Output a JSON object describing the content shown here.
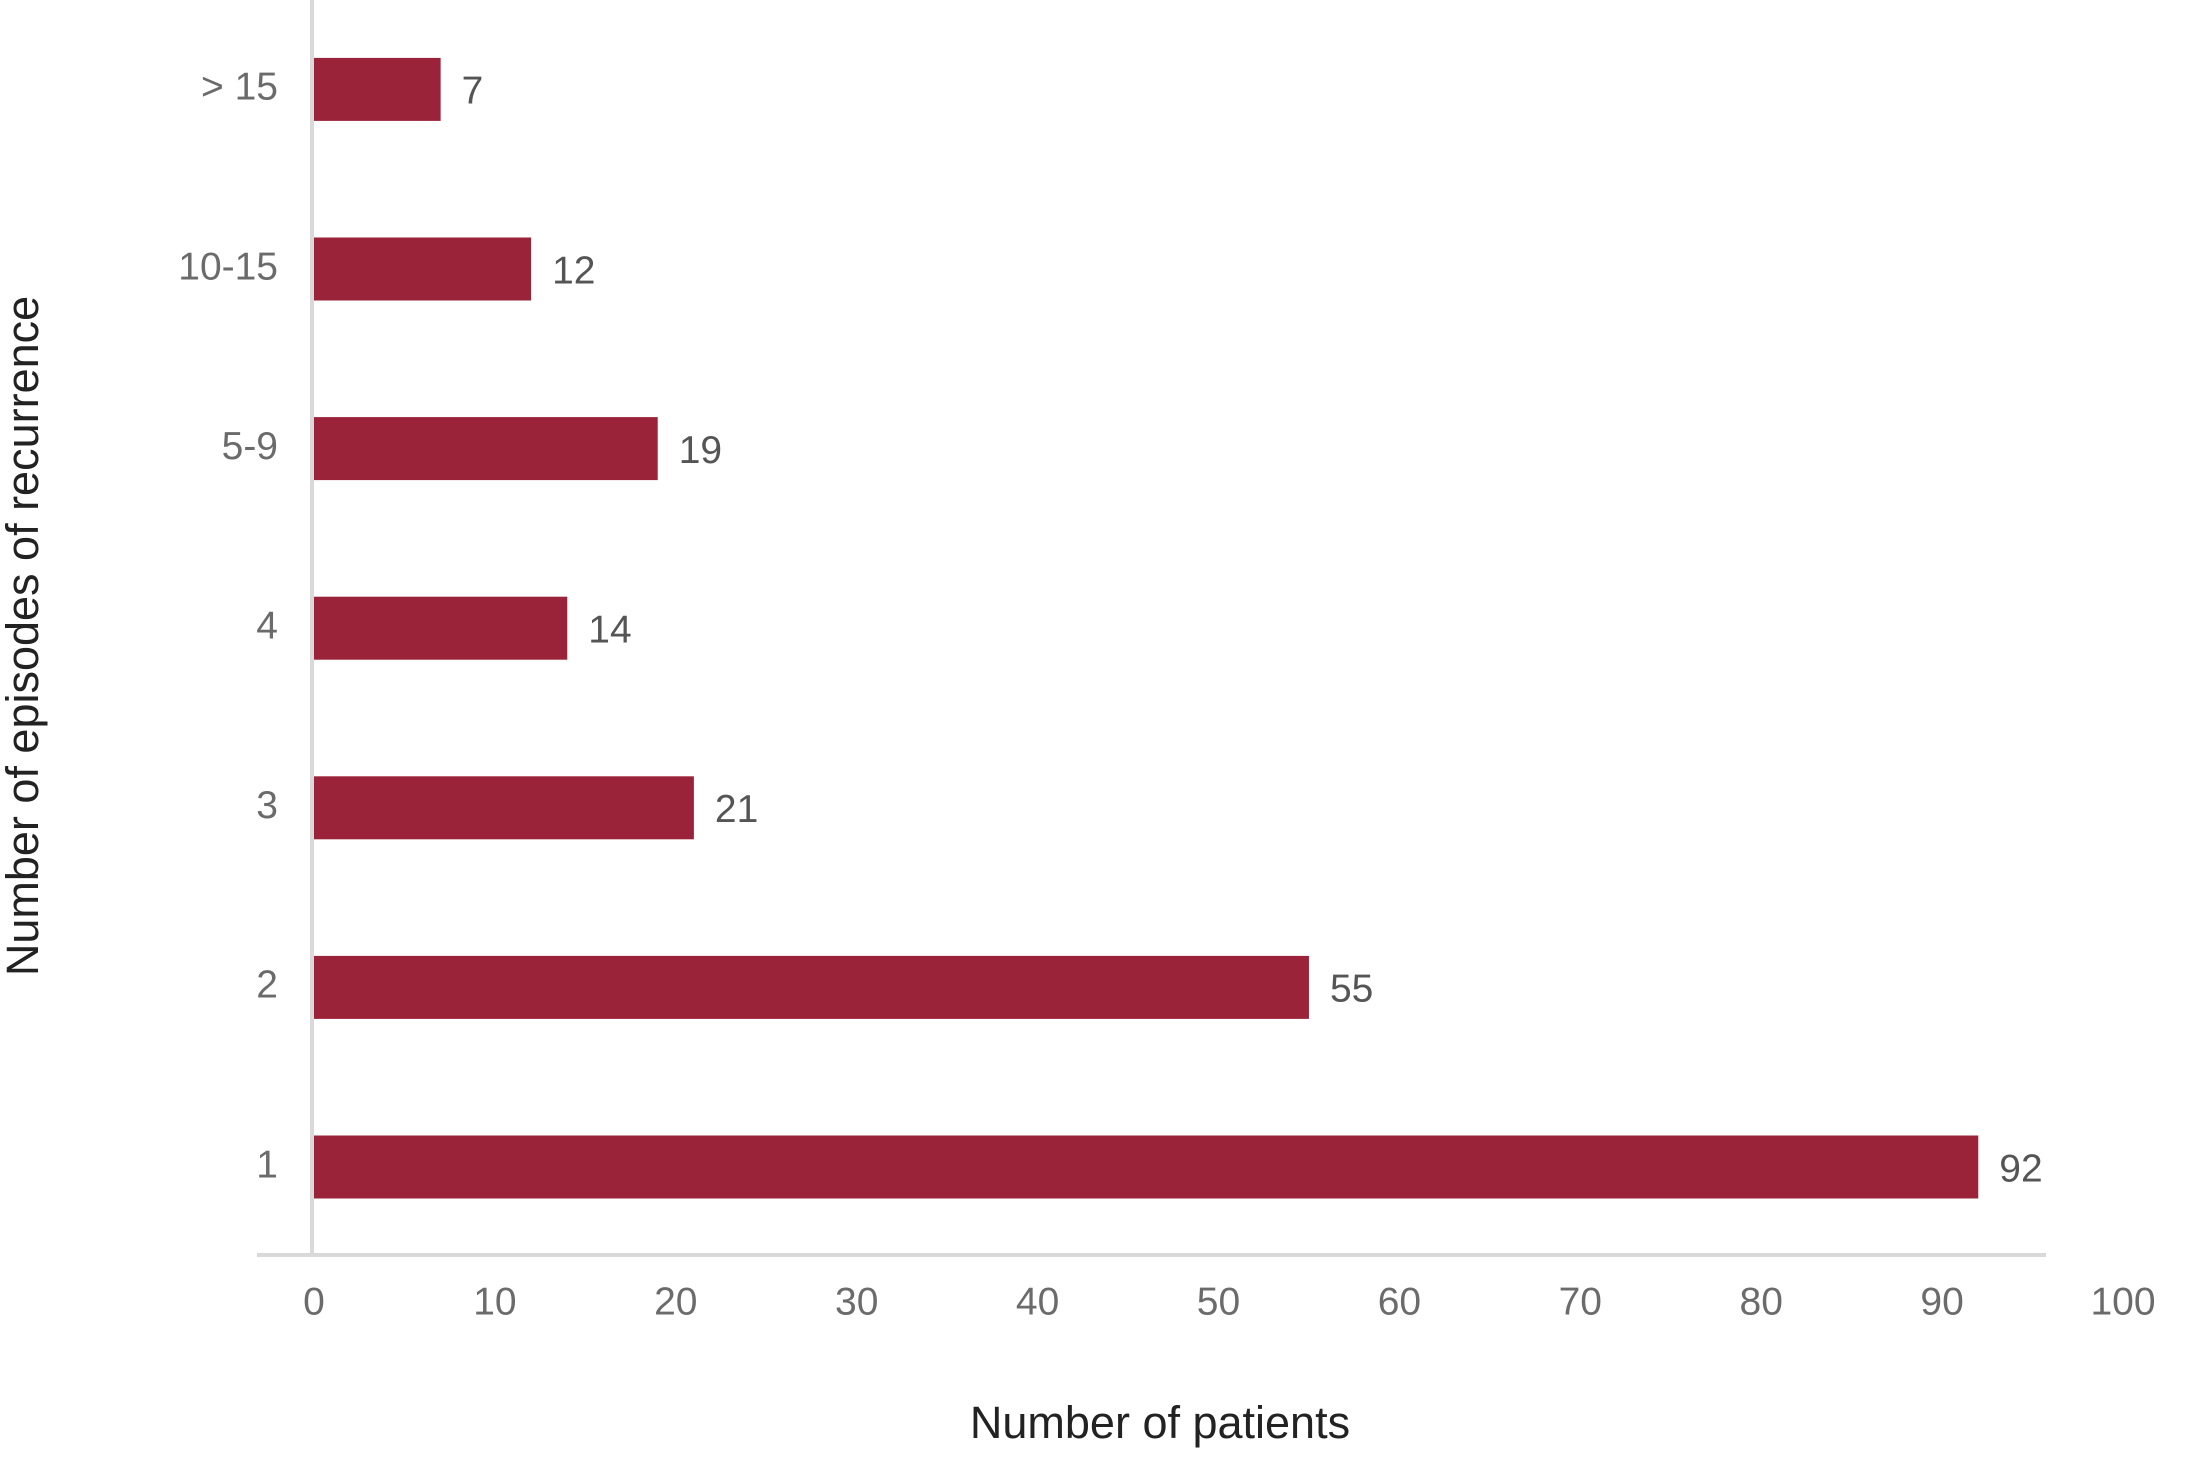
{
  "chart_data": {
    "type": "hbar",
    "x_label": "Number of patients",
    "y_label": "Number of episodes of recurrence",
    "categories": [
      "1",
      "2",
      "3",
      "4",
      "5-9",
      "10-15",
      "> 15"
    ],
    "values": [
      92,
      55,
      21,
      14,
      19,
      12,
      7
    ],
    "color": "#9b2339",
    "xlim": [
      0,
      100
    ],
    "xticks": [
      0,
      10,
      20,
      30,
      40,
      50,
      60,
      70,
      80,
      90,
      100
    ],
    "grid": false
  }
}
